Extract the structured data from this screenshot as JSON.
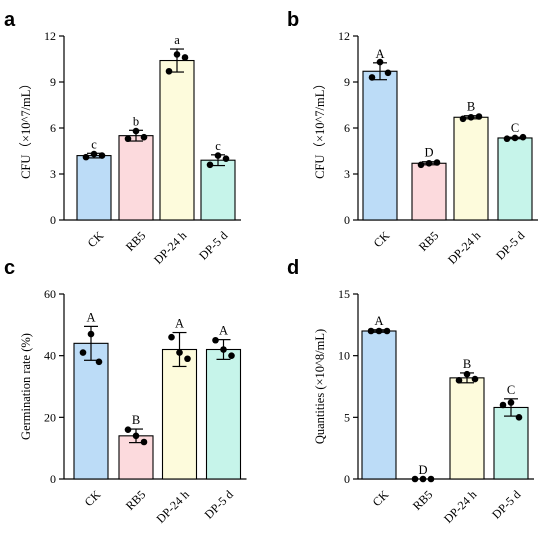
{
  "chart_data": [
    {
      "type": "bar",
      "panel": "a",
      "categories": [
        "CK",
        "RB5",
        "DP-24 h",
        "DP-5 d"
      ],
      "values": [
        4.2,
        5.5,
        10.4,
        3.9
      ],
      "errors": [
        0.15,
        0.35,
        0.75,
        0.35
      ],
      "points": [
        [
          4.1,
          4.3,
          4.2
        ],
        [
          5.3,
          5.8,
          5.4
        ],
        [
          9.7,
          10.8,
          10.6
        ],
        [
          3.6,
          4.2,
          4.0
        ]
      ],
      "significance": [
        "c",
        "b",
        "a",
        "c"
      ],
      "ylabel": "CFU（×10^7/mL）",
      "ylim": [
        0,
        12
      ],
      "yticks": [
        0,
        3,
        6,
        9,
        12
      ]
    },
    {
      "type": "bar",
      "panel": "b",
      "categories": [
        "CK",
        "RB5",
        "DP-24 h",
        "DP-5 d"
      ],
      "values": [
        9.7,
        3.7,
        6.7,
        5.35
      ],
      "errors": [
        0.55,
        0.1,
        0.1,
        0.05
      ],
      "points": [
        [
          9.3,
          10.3,
          9.6
        ],
        [
          3.6,
          3.7,
          3.75
        ],
        [
          6.6,
          6.7,
          6.75
        ],
        [
          5.3,
          5.35,
          5.4
        ]
      ],
      "significance": [
        "A",
        "D",
        "B",
        "C"
      ],
      "ylabel": "CFU（×10^7/mL）",
      "ylim": [
        0,
        12
      ],
      "yticks": [
        0,
        3,
        6,
        9,
        12
      ]
    },
    {
      "type": "bar",
      "panel": "c",
      "categories": [
        "CK",
        "RB5",
        "DP-24 h",
        "DP-5 d"
      ],
      "values": [
        44,
        14,
        42,
        42
      ],
      "errors": [
        5.5,
        2.2,
        5.5,
        3.2
      ],
      "points": [
        [
          41,
          47,
          38
        ],
        [
          16,
          14,
          12
        ],
        [
          46,
          41,
          39
        ],
        [
          45,
          42,
          40
        ]
      ],
      "significance": [
        "A",
        "B",
        "A",
        "A"
      ],
      "ylabel": "Germination rate (%)",
      "ylim": [
        0,
        60
      ],
      "yticks": [
        0,
        20,
        40,
        60
      ]
    },
    {
      "type": "bar",
      "panel": "d",
      "categories": [
        "CK",
        "RB5",
        "DP-24 h",
        "DP-5 d"
      ],
      "values": [
        12.0,
        0.0,
        8.2,
        5.8
      ],
      "errors": [
        0.1,
        0.0,
        0.4,
        0.7
      ],
      "points": [
        [
          12.0,
          12.0,
          12.0
        ],
        [
          0.0,
          0.0,
          0.0
        ],
        [
          8.0,
          8.5,
          8.1
        ],
        [
          6.0,
          6.2,
          5.0
        ]
      ],
      "significance": [
        "A",
        "D",
        "B",
        "C"
      ],
      "ylabel": "Quantities (×10^8/mL)",
      "ylim": [
        0,
        15
      ],
      "yticks": [
        0,
        5,
        10,
        15
      ]
    }
  ],
  "colors": {
    "bar_fills": [
      "#bcdcf7",
      "#fcdadd",
      "#fdfbdc",
      "#c6f4ea"
    ],
    "stroke": "#000000",
    "point": "#000000"
  }
}
